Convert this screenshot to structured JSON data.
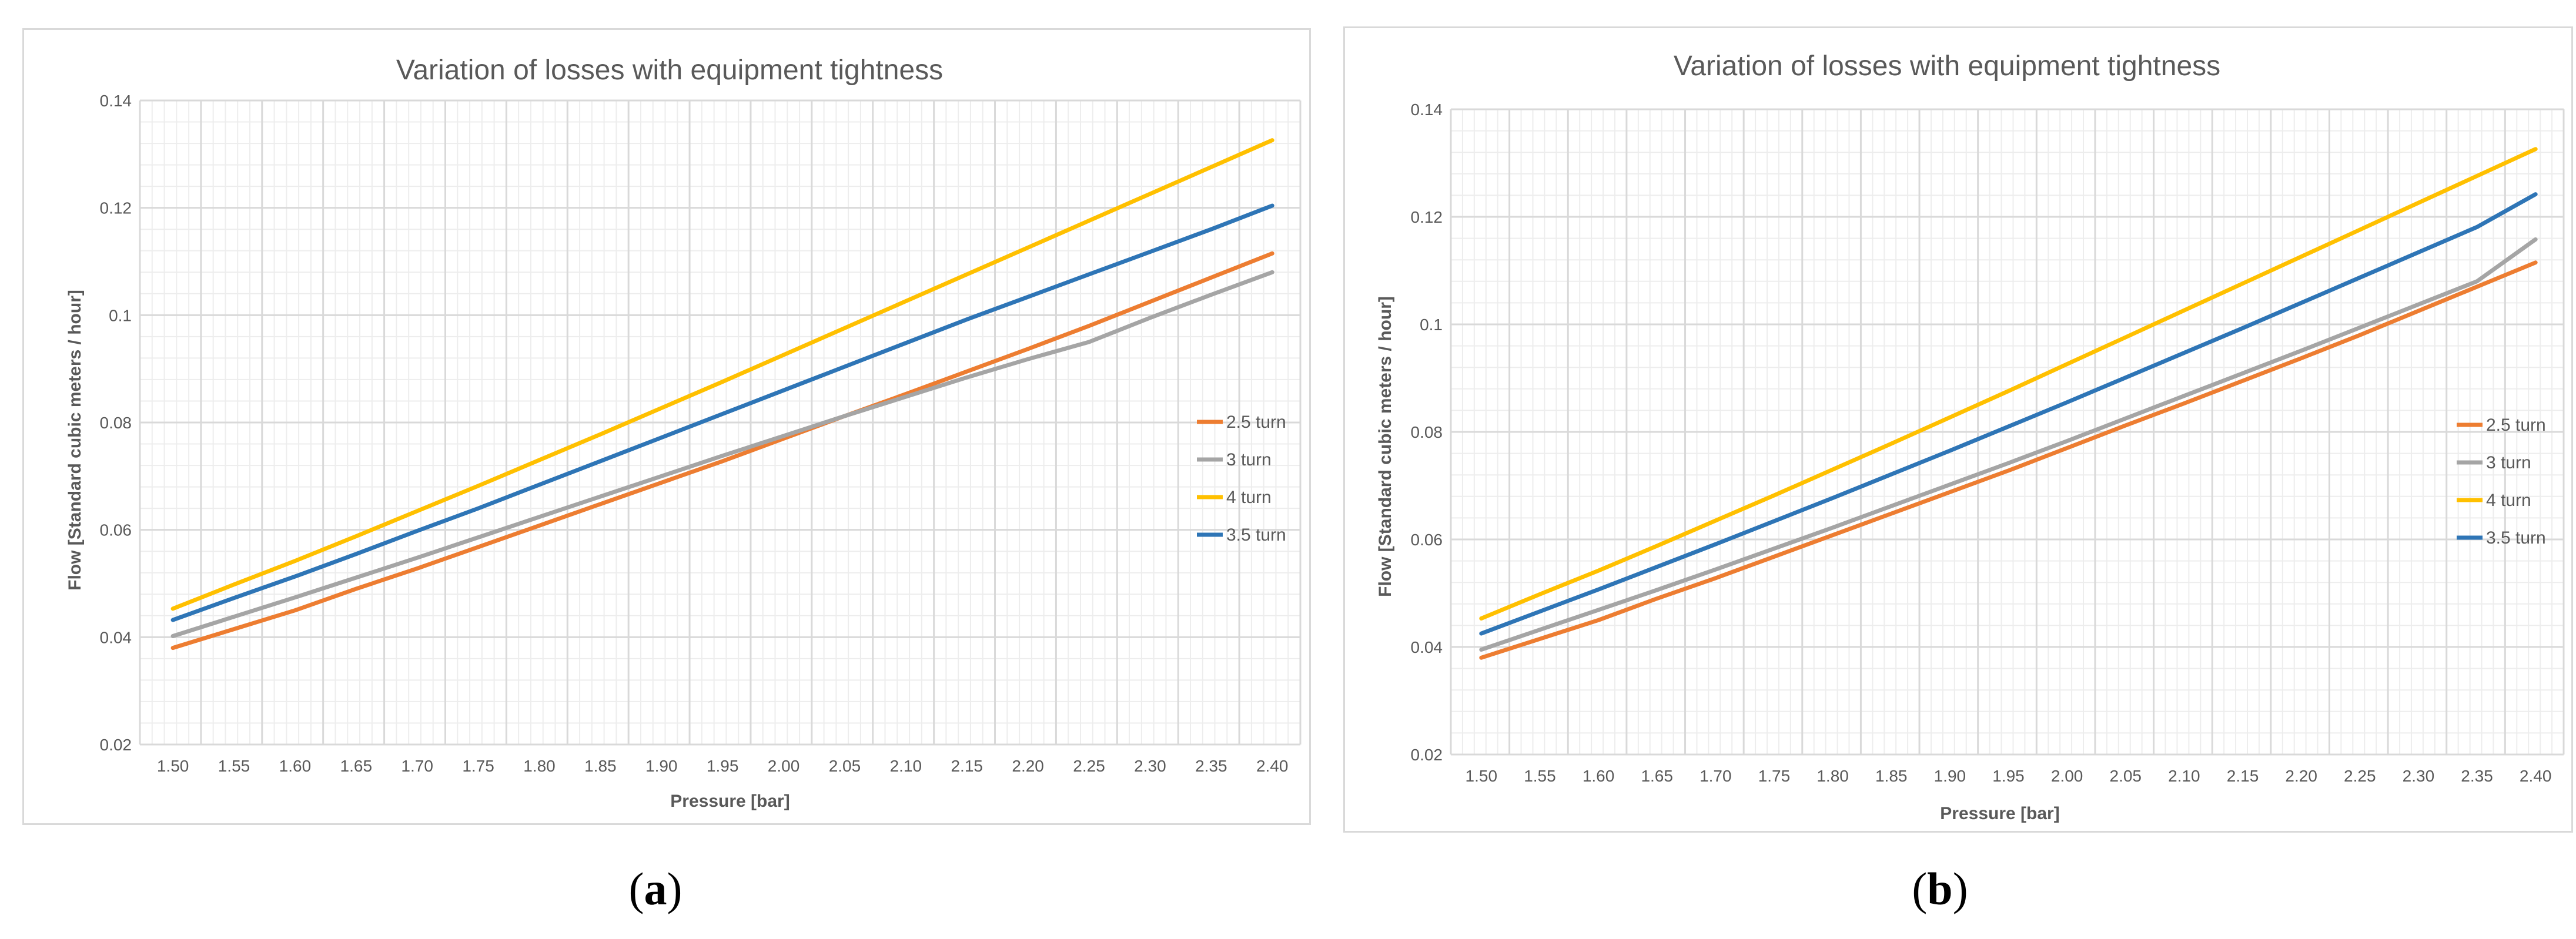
{
  "colors": {
    "orange": "#ED7D31",
    "gray": "#A5A5A5",
    "yellow": "#FFC000",
    "blue": "#4472C4",
    "grid": "#d9d9d9",
    "text": "#595959"
  },
  "captions": {
    "a": {
      "open": "(",
      "letter": "a",
      "close": ")"
    },
    "b": {
      "open": "(",
      "letter": "b",
      "close": ")"
    }
  },
  "chart_data": [
    {
      "type": "line",
      "title": "Variation of losses with equipment tightness",
      "xlabel": "Pressure [bar]",
      "ylabel": "Flow [Standard cubic meters / hour]",
      "x": [
        1.5,
        1.55,
        1.6,
        1.65,
        1.7,
        1.75,
        1.8,
        1.85,
        1.9,
        1.95,
        2.0,
        2.05,
        2.1,
        2.15,
        2.2,
        2.25,
        2.3,
        2.35,
        2.4
      ],
      "x_tick_labels": [
        "1.50",
        "1.55",
        "1.60",
        "1.65",
        "1.70",
        "1.75",
        "1.80",
        "1.85",
        "1.90",
        "1.95",
        "2.00",
        "2.05",
        "2.10",
        "2.15",
        "2.20",
        "2.25",
        "2.30",
        "2.35",
        "2.40"
      ],
      "y_ticks": [
        0.02,
        0.04,
        0.06,
        0.08,
        0.1,
        0.12,
        0.14
      ],
      "y_tick_labels": [
        "0.02",
        "0.04",
        "0.06",
        "0.08",
        "0.1",
        "0.12",
        "0.14"
      ],
      "ylim": [
        0.02,
        0.14
      ],
      "grid": true,
      "legend_position": "right",
      "series": [
        {
          "name": "2.5 turn",
          "color": "#ED7D31",
          "values": [
            0.038,
            0.0415,
            0.045,
            0.049,
            0.0528,
            0.0568,
            0.0608,
            0.0648,
            0.0688,
            0.0728,
            0.077,
            0.0812,
            0.0853,
            0.0895,
            0.0937,
            0.098,
            0.1025,
            0.107,
            0.1115
          ]
        },
        {
          "name": "3 turn",
          "color": "#A5A5A5",
          "values": [
            0.0402,
            0.0438,
            0.0474,
            0.0511,
            0.0548,
            0.0586,
            0.0624,
            0.0662,
            0.07,
            0.0738,
            0.0775,
            0.0812,
            0.0848,
            0.0884,
            0.0918,
            0.095,
            0.0995,
            0.1038,
            0.108
          ]
        },
        {
          "name": "4 turn",
          "color": "#FFC000",
          "values": [
            0.0453,
            0.0498,
            0.0542,
            0.0588,
            0.0635,
            0.0682,
            0.073,
            0.0778,
            0.0827,
            0.0876,
            0.0926,
            0.0976,
            0.1026,
            0.1076,
            0.1126,
            0.1176,
            0.1226,
            0.1276,
            0.1326
          ]
        },
        {
          "name": "3.5 turn",
          "color": "#2E75B6",
          "values": [
            0.0432,
            0.0473,
            0.0513,
            0.0555,
            0.0598,
            0.064,
            0.0684,
            0.0728,
            0.0772,
            0.0816,
            0.086,
            0.0904,
            0.0948,
            0.0992,
            0.1034,
            0.1076,
            0.1118,
            0.116,
            0.1204
          ]
        }
      ]
    },
    {
      "type": "line",
      "title": "Variation of losses with equipment tightness",
      "xlabel": "Pressure [bar]",
      "ylabel": "Flow [Standard cubic meters / hour]",
      "x": [
        1.5,
        1.55,
        1.6,
        1.65,
        1.7,
        1.75,
        1.8,
        1.85,
        1.9,
        1.95,
        2.0,
        2.05,
        2.1,
        2.15,
        2.2,
        2.25,
        2.3,
        2.35,
        2.4
      ],
      "x_tick_labels": [
        "1.50",
        "1.55",
        "1.60",
        "1.65",
        "1.70",
        "1.75",
        "1.80",
        "1.85",
        "1.90",
        "1.95",
        "2.00",
        "2.05",
        "2.10",
        "2.15",
        "2.20",
        "2.25",
        "2.30",
        "2.35",
        "2.40"
      ],
      "y_ticks": [
        0.02,
        0.04,
        0.06,
        0.08,
        0.1,
        0.12,
        0.14
      ],
      "y_tick_labels": [
        "0.02",
        "0.04",
        "0.06",
        "0.08",
        "0.1",
        "0.12",
        "0.14"
      ],
      "ylim": [
        0.02,
        0.14
      ],
      "grid": true,
      "legend_position": "right",
      "series": [
        {
          "name": "2.5 turn",
          "color": "#ED7D31",
          "values": [
            0.038,
            0.0415,
            0.045,
            0.049,
            0.0528,
            0.0568,
            0.0608,
            0.0648,
            0.0688,
            0.0728,
            0.077,
            0.0812,
            0.0853,
            0.0895,
            0.0937,
            0.098,
            0.1025,
            0.107,
            0.1115
          ]
        },
        {
          "name": "3 turn",
          "color": "#A5A5A5",
          "values": [
            0.0395,
            0.0432,
            0.0469,
            0.0506,
            0.0544,
            0.0583,
            0.0622,
            0.0662,
            0.0702,
            0.0742,
            0.0783,
            0.0825,
            0.0867,
            0.0909,
            0.0951,
            0.0994,
            0.1037,
            0.108,
            0.1158
          ]
        },
        {
          "name": "4 turn",
          "color": "#FFC000",
          "values": [
            0.0453,
            0.0498,
            0.0542,
            0.0588,
            0.0635,
            0.0682,
            0.073,
            0.0778,
            0.0827,
            0.0876,
            0.0926,
            0.0976,
            0.1026,
            0.1076,
            0.1126,
            0.1176,
            0.1226,
            0.1276,
            0.1326
          ]
        },
        {
          "name": "3.5 turn",
          "color": "#2E75B6",
          "values": [
            0.0425,
            0.0466,
            0.0507,
            0.0549,
            0.0591,
            0.0634,
            0.0677,
            0.0721,
            0.0765,
            0.081,
            0.0855,
            0.0901,
            0.0947,
            0.0993,
            0.104,
            0.1087,
            0.1134,
            0.1181,
            0.1242
          ]
        }
      ]
    }
  ]
}
